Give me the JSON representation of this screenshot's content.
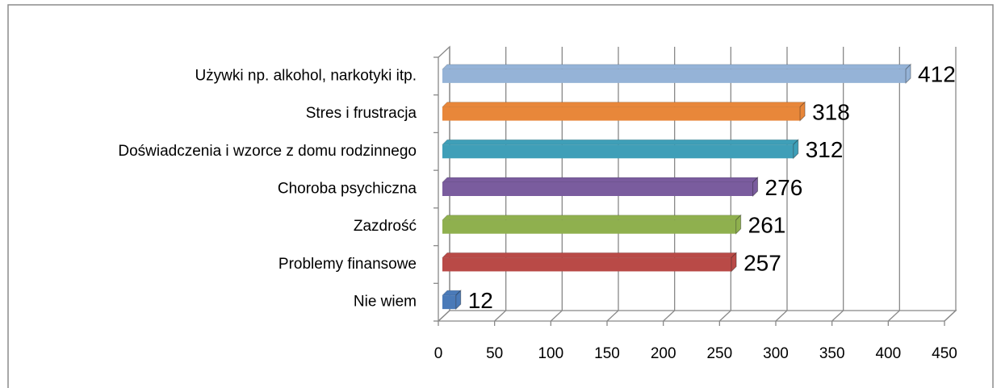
{
  "chart_data": {
    "type": "bar",
    "orientation": "horizontal",
    "three_d": true,
    "categories": [
      "Używki np. alkohol, narkotyki itp.",
      "Stres i frustracja",
      "Doświadczenia i wzorce z domu rodzinnego",
      "Choroba psychiczna",
      "Zazdrość",
      "Problemy finansowe",
      "Nie wiem"
    ],
    "values": [
      412,
      318,
      312,
      276,
      261,
      257,
      12
    ],
    "colors": [
      "#95b3d7",
      "#e8873a",
      "#3f9fb8",
      "#7a5c9e",
      "#8fb04e",
      "#b94a47",
      "#4a7ab8"
    ],
    "xlim": [
      0,
      450
    ],
    "xticks": [
      0,
      50,
      100,
      150,
      200,
      250,
      300,
      350,
      400,
      450
    ],
    "grid": true,
    "data_labels": true
  }
}
